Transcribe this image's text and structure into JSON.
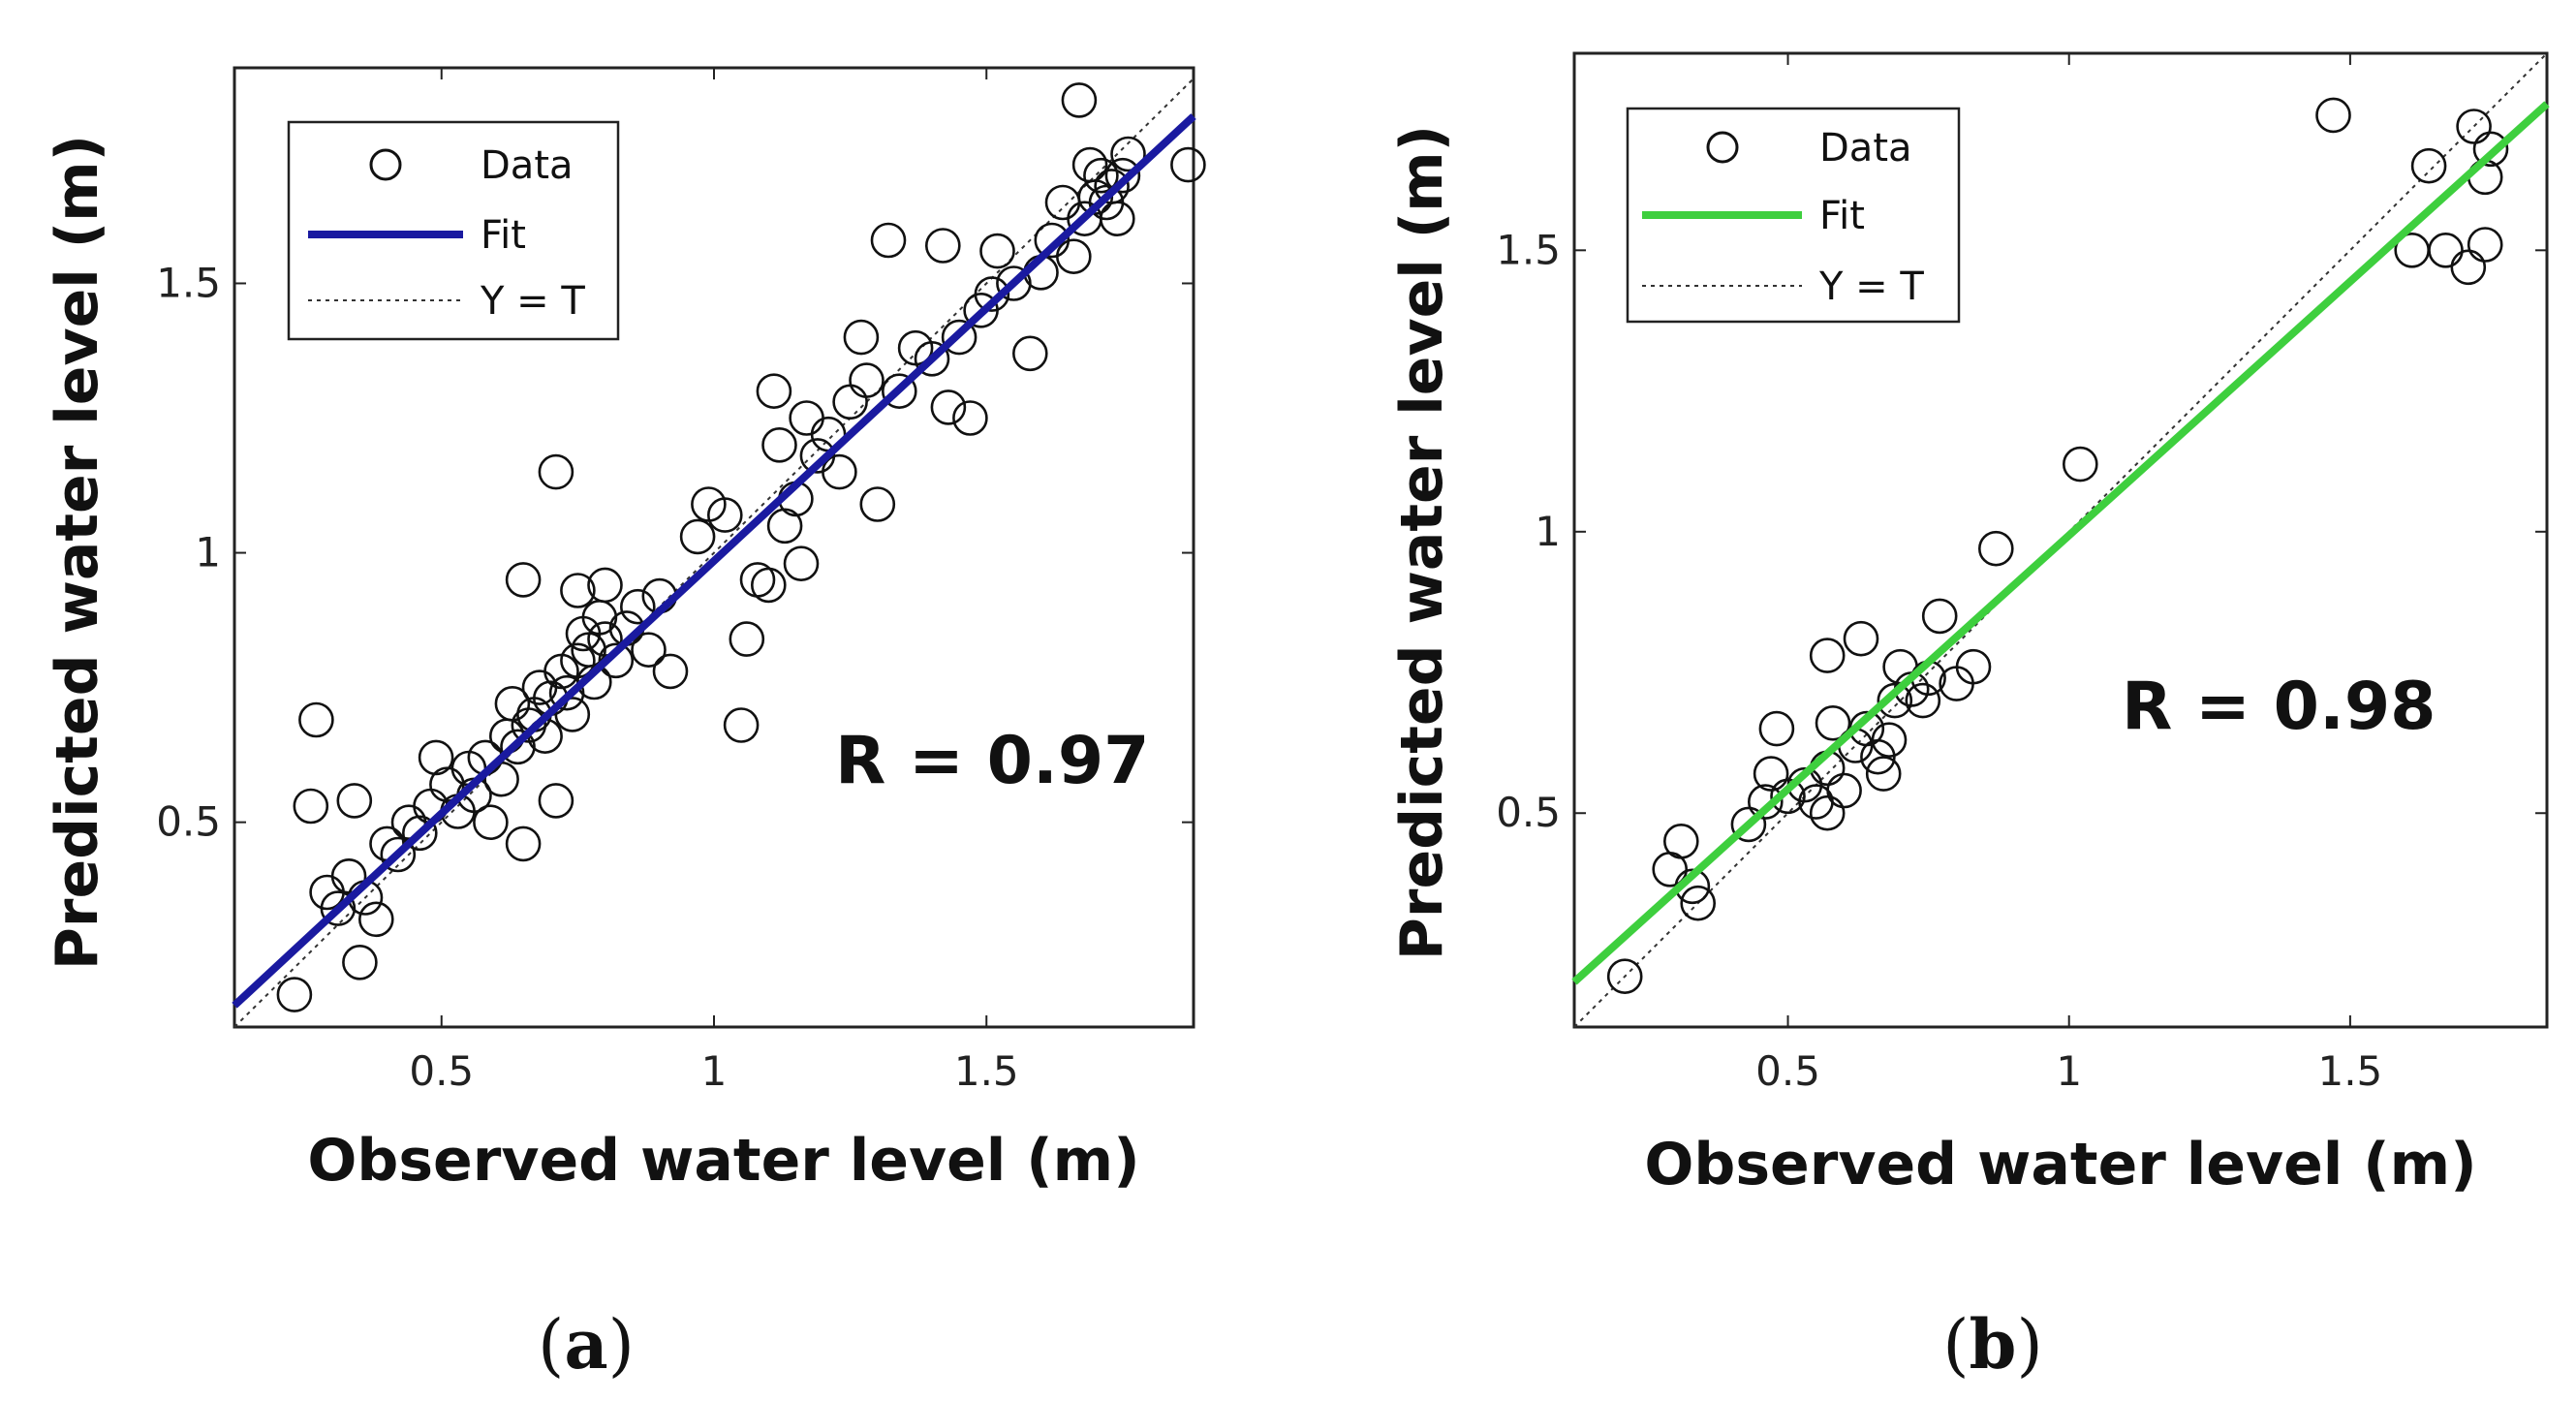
{
  "chart_data": [
    {
      "type": "scatter",
      "panel": "a",
      "caption_letter": "a",
      "xlabel": "Observed water level (m)",
      "ylabel": "Predicted water level (m)",
      "xlim": [
        0.12,
        1.88
      ],
      "ylim": [
        0.12,
        1.9
      ],
      "xticks": [
        0.5,
        1,
        1.5
      ],
      "xtick_labels": [
        "0.5",
        "1",
        "1.5"
      ],
      "yticks": [
        0.5,
        1,
        1.5
      ],
      "ytick_labels": [
        "0.5",
        "1",
        "1.5"
      ],
      "annotation": "R = 0.97",
      "legend": {
        "data": "Data",
        "fit": "Fit",
        "identity": "Y = T",
        "placement": "top-left"
      },
      "fit_color": "#1a1aa0",
      "fit_line": {
        "x": [
          0.12,
          1.88
        ],
        "y": [
          0.16,
          1.81
        ]
      },
      "identity_line": {
        "x": [
          0.12,
          1.88
        ],
        "y": [
          0.12,
          1.88
        ]
      },
      "series": [
        {
          "name": "Data",
          "points": [
            [
              0.23,
              0.18
            ],
            [
              0.35,
              0.24
            ],
            [
              0.27,
              0.69
            ],
            [
              0.26,
              0.53
            ],
            [
              0.34,
              0.54
            ],
            [
              0.29,
              0.37
            ],
            [
              0.31,
              0.34
            ],
            [
              0.33,
              0.4
            ],
            [
              0.36,
              0.36
            ],
            [
              0.38,
              0.32
            ],
            [
              0.4,
              0.46
            ],
            [
              0.42,
              0.44
            ],
            [
              0.44,
              0.5
            ],
            [
              0.46,
              0.48
            ],
            [
              0.48,
              0.53
            ],
            [
              0.49,
              0.62
            ],
            [
              0.51,
              0.57
            ],
            [
              0.53,
              0.52
            ],
            [
              0.55,
              0.6
            ],
            [
              0.56,
              0.55
            ],
            [
              0.58,
              0.62
            ],
            [
              0.59,
              0.5
            ],
            [
              0.61,
              0.58
            ],
            [
              0.62,
              0.66
            ],
            [
              0.63,
              0.72
            ],
            [
              0.64,
              0.64
            ],
            [
              0.65,
              0.46
            ],
            [
              0.66,
              0.68
            ],
            [
              0.67,
              0.7
            ],
            [
              0.68,
              0.75
            ],
            [
              0.69,
              0.66
            ],
            [
              0.7,
              0.73
            ],
            [
              0.71,
              0.54
            ],
            [
              0.72,
              0.78
            ],
            [
              0.73,
              0.74
            ],
            [
              0.74,
              0.7
            ],
            [
              0.75,
              0.8
            ],
            [
              0.76,
              0.85
            ],
            [
              0.77,
              0.82
            ],
            [
              0.78,
              0.76
            ],
            [
              0.79,
              0.88
            ],
            [
              0.8,
              0.84
            ],
            [
              0.82,
              0.8
            ],
            [
              0.84,
              0.86
            ],
            [
              0.86,
              0.9
            ],
            [
              0.88,
              0.82
            ],
            [
              0.9,
              0.92
            ],
            [
              0.92,
              0.78
            ],
            [
              0.65,
              0.95
            ],
            [
              0.71,
              1.15
            ],
            [
              0.75,
              0.93
            ],
            [
              0.8,
              0.94
            ],
            [
              0.97,
              1.03
            ],
            [
              0.99,
              1.09
            ],
            [
              1.02,
              1.07
            ],
            [
              1.05,
              0.68
            ],
            [
              1.06,
              0.84
            ],
            [
              1.08,
              0.95
            ],
            [
              1.1,
              0.94
            ],
            [
              1.11,
              1.3
            ],
            [
              1.12,
              1.2
            ],
            [
              1.13,
              1.05
            ],
            [
              1.15,
              1.1
            ],
            [
              1.16,
              0.98
            ],
            [
              1.17,
              1.25
            ],
            [
              1.19,
              1.18
            ],
            [
              1.21,
              1.22
            ],
            [
              1.23,
              1.15
            ],
            [
              1.25,
              1.28
            ],
            [
              1.27,
              1.4
            ],
            [
              1.28,
              1.32
            ],
            [
              1.3,
              1.09
            ],
            [
              1.32,
              1.58
            ],
            [
              1.34,
              1.3
            ],
            [
              1.37,
              1.38
            ],
            [
              1.4,
              1.36
            ],
            [
              1.42,
              1.57
            ],
            [
              1.43,
              1.27
            ],
            [
              1.45,
              1.4
            ],
            [
              1.47,
              1.25
            ],
            [
              1.49,
              1.45
            ],
            [
              1.51,
              1.48
            ],
            [
              1.52,
              1.56
            ],
            [
              1.55,
              1.5
            ],
            [
              1.58,
              1.37
            ],
            [
              1.6,
              1.52
            ],
            [
              1.62,
              1.58
            ],
            [
              1.64,
              1.65
            ],
            [
              1.66,
              1.55
            ],
            [
              1.67,
              1.84
            ],
            [
              1.68,
              1.62
            ],
            [
              1.69,
              1.72
            ],
            [
              1.7,
              1.66
            ],
            [
              1.71,
              1.7
            ],
            [
              1.72,
              1.65
            ],
            [
              1.73,
              1.68
            ],
            [
              1.74,
              1.62
            ],
            [
              1.75,
              1.7
            ],
            [
              1.76,
              1.74
            ],
            [
              1.87,
              1.72
            ]
          ]
        }
      ]
    },
    {
      "type": "scatter",
      "panel": "b",
      "caption_letter": "b",
      "xlabel": "Observed water level (m)",
      "ylabel": "Predicted water level (m)",
      "xlim": [
        0.12,
        1.85
      ],
      "ylim": [
        0.12,
        1.85
      ],
      "xticks": [
        0.5,
        1,
        1.5
      ],
      "xtick_labels": [
        "0.5",
        "1",
        "1.5"
      ],
      "yticks": [
        0.5,
        1,
        1.5
      ],
      "ytick_labels": [
        "0.5",
        "1",
        "1.5"
      ],
      "annotation": "R = 0.98",
      "legend": {
        "data": "Data",
        "fit": "Fit",
        "identity": "Y = T",
        "placement": "top-left"
      },
      "fit_color": "#3ecf3e",
      "fit_line": {
        "x": [
          0.12,
          1.85
        ],
        "y": [
          0.2,
          1.76
        ]
      },
      "identity_line": {
        "x": [
          0.12,
          1.85
        ],
        "y": [
          0.12,
          1.85
        ]
      },
      "series": [
        {
          "name": "Data",
          "points": [
            [
              0.21,
              0.21
            ],
            [
              0.29,
              0.4
            ],
            [
              0.31,
              0.45
            ],
            [
              0.33,
              0.37
            ],
            [
              0.34,
              0.34
            ],
            [
              0.43,
              0.48
            ],
            [
              0.46,
              0.52
            ],
            [
              0.47,
              0.57
            ],
            [
              0.48,
              0.65
            ],
            [
              0.5,
              0.53
            ],
            [
              0.53,
              0.55
            ],
            [
              0.55,
              0.52
            ],
            [
              0.57,
              0.5
            ],
            [
              0.57,
              0.58
            ],
            [
              0.57,
              0.78
            ],
            [
              0.58,
              0.66
            ],
            [
              0.6,
              0.54
            ],
            [
              0.62,
              0.62
            ],
            [
              0.63,
              0.81
            ],
            [
              0.64,
              0.65
            ],
            [
              0.66,
              0.6
            ],
            [
              0.67,
              0.57
            ],
            [
              0.68,
              0.63
            ],
            [
              0.69,
              0.7
            ],
            [
              0.7,
              0.76
            ],
            [
              0.72,
              0.72
            ],
            [
              0.74,
              0.7
            ],
            [
              0.75,
              0.74
            ],
            [
              0.77,
              0.85
            ],
            [
              0.8,
              0.73
            ],
            [
              0.83,
              0.76
            ],
            [
              0.87,
              0.97
            ],
            [
              1.02,
              1.12
            ],
            [
              1.47,
              1.74
            ],
            [
              1.61,
              1.5
            ],
            [
              1.64,
              1.65
            ],
            [
              1.67,
              1.5
            ],
            [
              1.71,
              1.47
            ],
            [
              1.72,
              1.72
            ],
            [
              1.74,
              1.51
            ],
            [
              1.74,
              1.63
            ],
            [
              1.75,
              1.68
            ]
          ]
        }
      ]
    }
  ]
}
